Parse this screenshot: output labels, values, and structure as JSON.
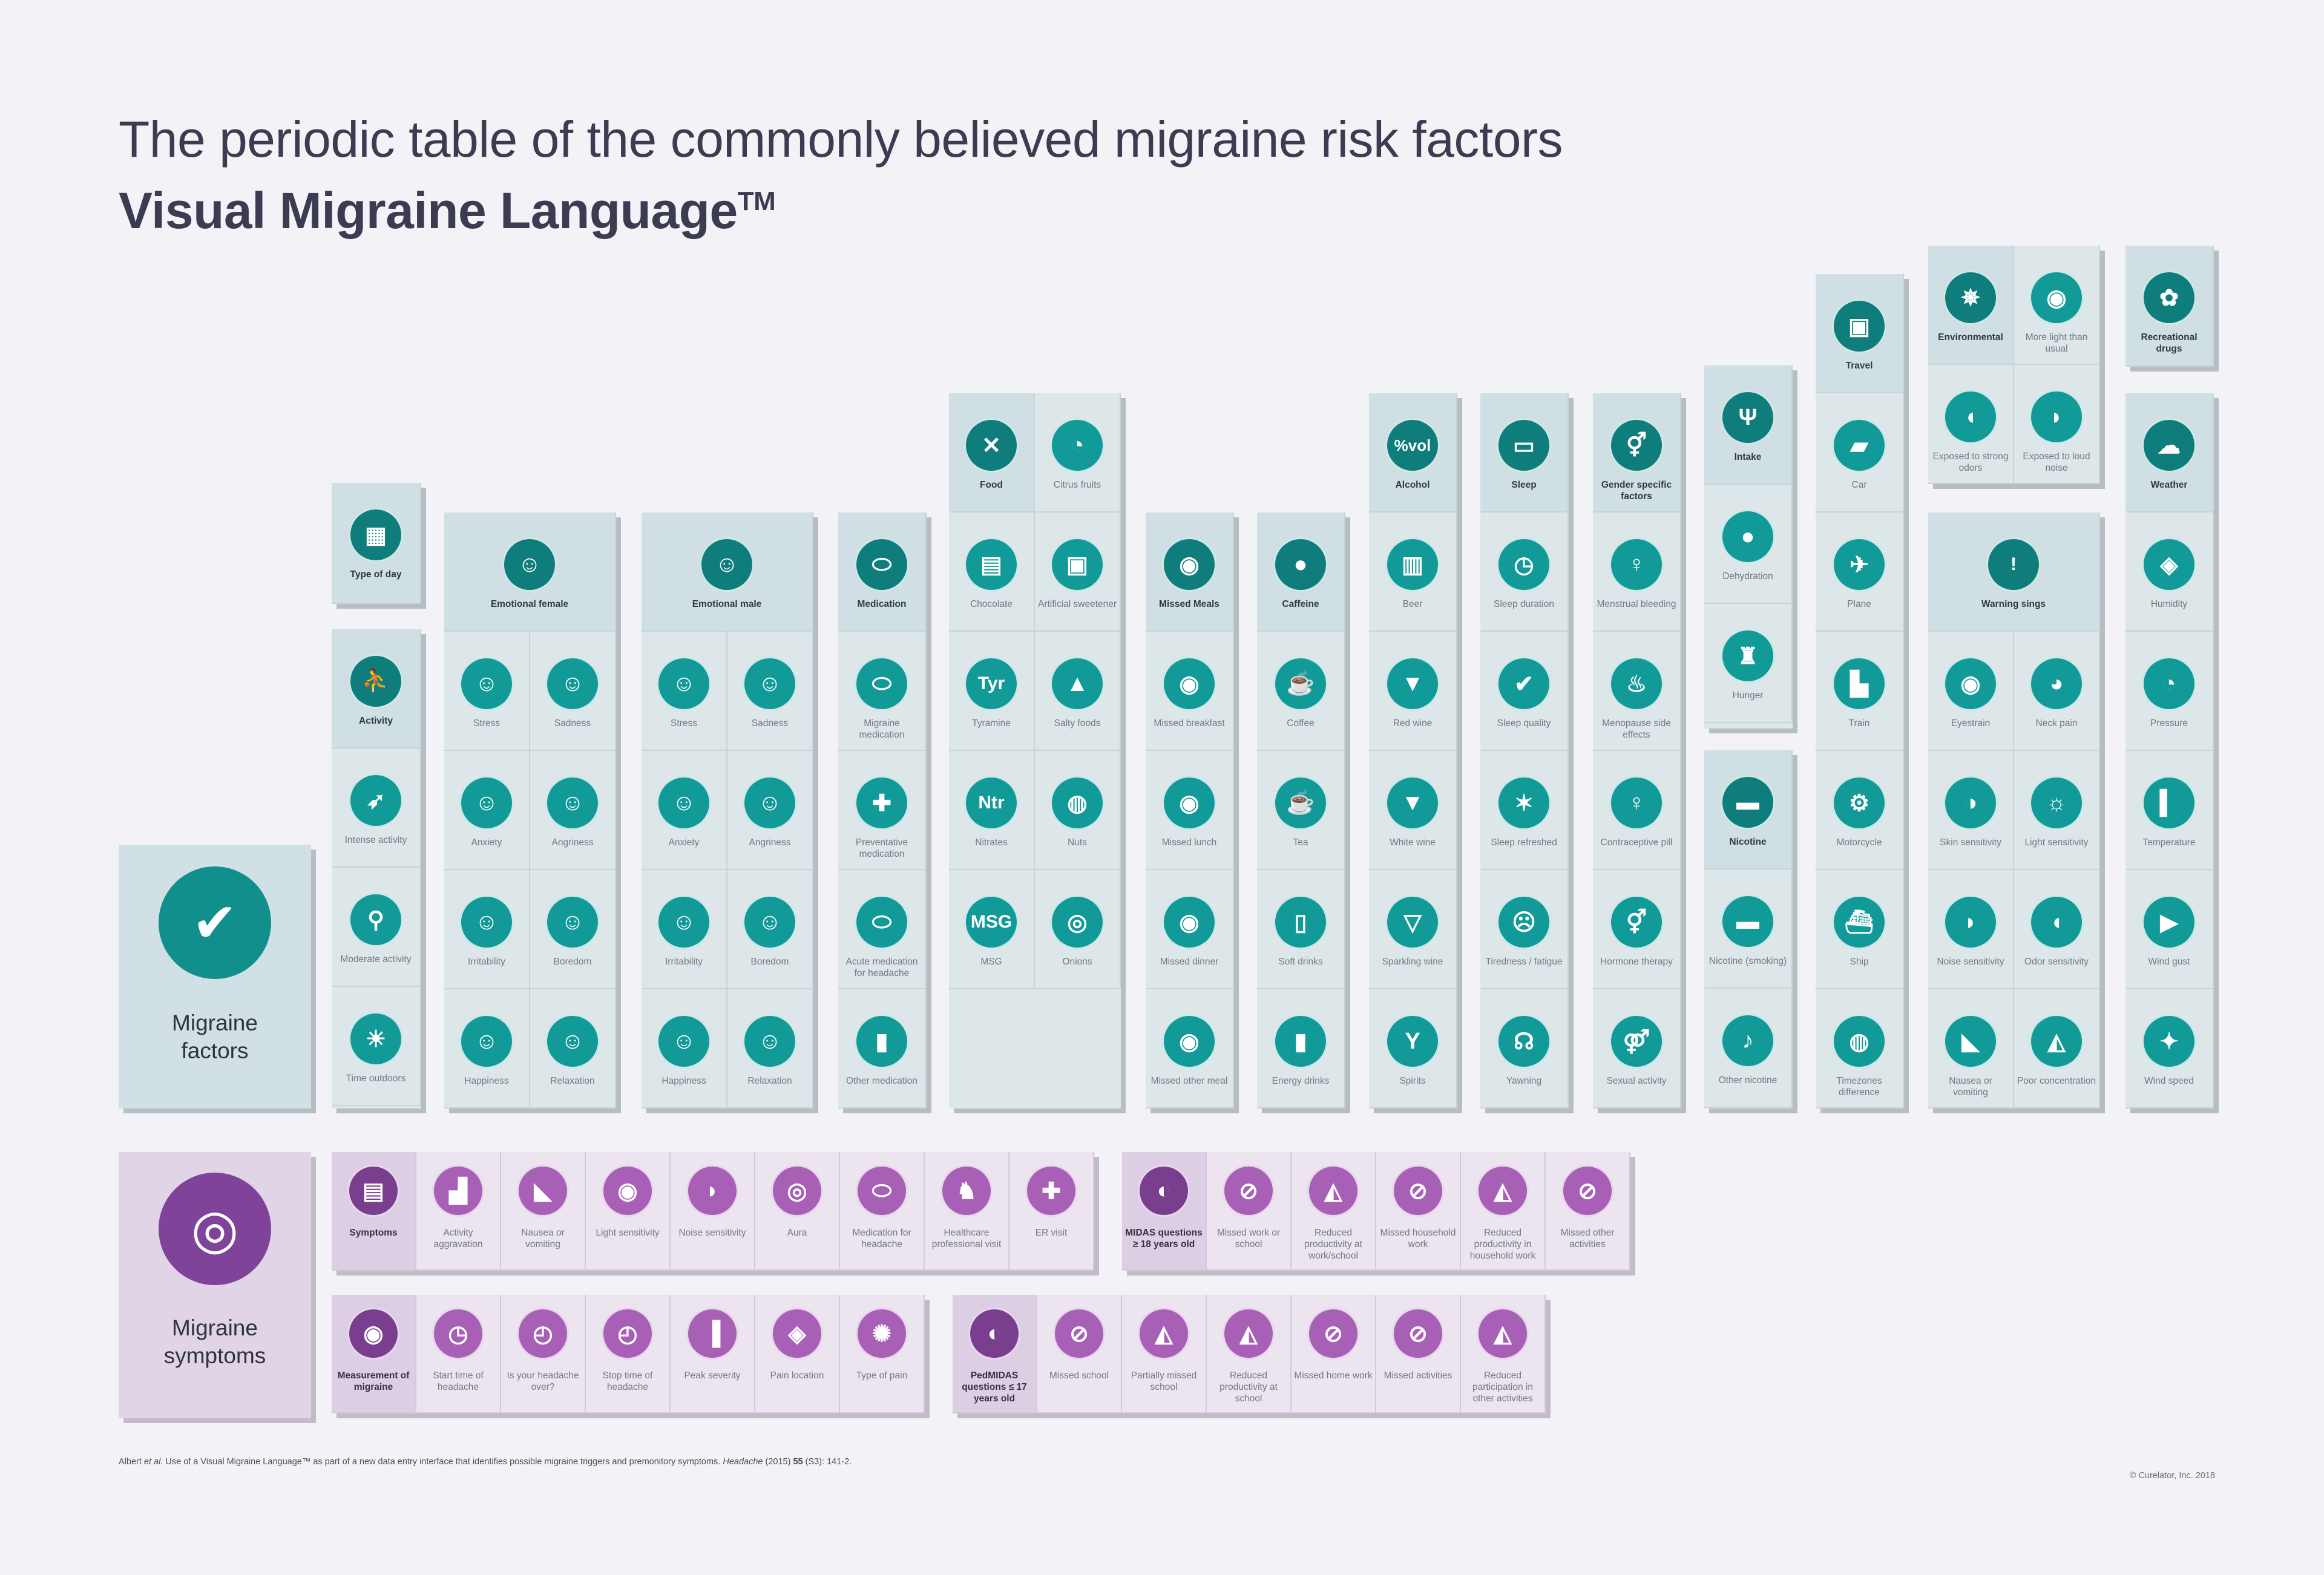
{
  "title_line1": "The periodic table of the commonly believed migraine risk factors",
  "title_line2": "Visual Migraine Language",
  "trademark": "TM",
  "colors": {
    "factor_icon": "#119a98",
    "factor_head_icon": "#0e7d7b",
    "symptom_icon": "#a760b5",
    "symptom_head_icon": "#7a3e8e"
  },
  "factors_panel": {
    "label": "Migraine factors",
    "icon": "head-check-icon"
  },
  "symptoms_panel": {
    "label": "Migraine symptoms",
    "icon": "head-spiral-icon"
  },
  "factor_columns": [
    {
      "head": {
        "label": "Type of day",
        "icon": "calendar-icon"
      },
      "items": []
    },
    {
      "head": {
        "label": "Activity",
        "icon": "activity-icon"
      },
      "items": [
        {
          "label": "Intense activity",
          "icon": "running-icon"
        },
        {
          "label": "Moderate activity",
          "icon": "walking-icon"
        },
        {
          "label": "Time outdoors",
          "icon": "outdoor-icon"
        }
      ]
    },
    {
      "head": {
        "label": "Emotional female",
        "icon": "female-face-icon"
      },
      "items": [
        {
          "label": "Stress",
          "icon": "face-icon"
        },
        {
          "label": "Sadness",
          "icon": "face-icon"
        },
        {
          "label": "Anxiety",
          "icon": "face-icon"
        },
        {
          "label": "Angriness",
          "icon": "face-icon"
        },
        {
          "label": "Irritability",
          "icon": "face-icon"
        },
        {
          "label": "Boredom",
          "icon": "face-icon"
        },
        {
          "label": "Happiness",
          "icon": "face-icon"
        },
        {
          "label": "Relaxation",
          "icon": "face-icon"
        }
      ]
    },
    {
      "head": {
        "label": "Emotional male",
        "icon": "male-face-icon"
      },
      "items": [
        {
          "label": "Stress",
          "icon": "face-icon"
        },
        {
          "label": "Sadness",
          "icon": "face-icon"
        },
        {
          "label": "Anxiety",
          "icon": "face-icon"
        },
        {
          "label": "Angriness",
          "icon": "face-icon"
        },
        {
          "label": "Irritability",
          "icon": "face-icon"
        },
        {
          "label": "Boredom",
          "icon": "face-icon"
        },
        {
          "label": "Happiness",
          "icon": "face-icon"
        },
        {
          "label": "Relaxation",
          "icon": "face-icon"
        }
      ]
    },
    {
      "head": {
        "label": "Medication",
        "icon": "pill-icon"
      },
      "items": [
        {
          "label": "Migraine medication",
          "icon": "pill-icon"
        },
        {
          "label": "Preventative medication",
          "icon": "pill-plus-icon"
        },
        {
          "label": "Acute medication for headache",
          "icon": "pill-icon"
        },
        {
          "label": "Other medication",
          "icon": "bottle-icon"
        }
      ]
    },
    {
      "head": {
        "label": "Food",
        "icon": "fork-knife-icon"
      },
      "items": [
        {
          "label": "Citrus fruits",
          "icon": "citrus-icon"
        },
        {
          "label": "Chocolate",
          "icon": "chocolate-icon"
        },
        {
          "label": "Artificial sweetener",
          "icon": "sweetener-icon"
        },
        {
          "label": "Tyramine",
          "icon": "tyr-icon",
          "text": "Tyr"
        },
        {
          "label": "Salty foods",
          "icon": "salt-icon"
        },
        {
          "label": "Nitrates",
          "icon": "ntr-icon",
          "text": "Ntr"
        },
        {
          "label": "Nuts",
          "icon": "nut-icon"
        },
        {
          "label": "MSG",
          "icon": "msg-icon",
          "text": "MSG"
        },
        {
          "label": "Onions",
          "icon": "onion-icon"
        }
      ]
    },
    {
      "head": {
        "label": "Missed Meals",
        "icon": "plate-icon"
      },
      "items": [
        {
          "label": "Missed breakfast",
          "icon": "plate-icon"
        },
        {
          "label": "Missed lunch",
          "icon": "plate-icon"
        },
        {
          "label": "Missed dinner",
          "icon": "plate-icon"
        },
        {
          "label": "Missed other meal",
          "icon": "plate-icon"
        }
      ]
    },
    {
      "head": {
        "label": "Caffeine",
        "icon": "coffee-bean-icon"
      },
      "items": [
        {
          "label": "Coffee",
          "icon": "cup-icon"
        },
        {
          "label": "Tea",
          "icon": "tea-icon"
        },
        {
          "label": "Soft drinks",
          "icon": "soda-icon"
        },
        {
          "label": "Energy drinks",
          "icon": "can-icon"
        }
      ]
    },
    {
      "head": {
        "label": "Alcohol",
        "icon": "vol-icon",
        "text": "%vol"
      },
      "items": [
        {
          "label": "Beer",
          "icon": "beer-icon"
        },
        {
          "label": "Red wine",
          "icon": "wine-icon"
        },
        {
          "label": "White wine",
          "icon": "wine-icon"
        },
        {
          "label": "Sparkling wine",
          "icon": "flute-icon"
        },
        {
          "label": "Spirits",
          "icon": "cocktail-icon"
        }
      ]
    },
    {
      "head": {
        "label": "Sleep",
        "icon": "bed-icon"
      },
      "items": [
        {
          "label": "Sleep duration",
          "icon": "bed-clock-icon"
        },
        {
          "label": "Sleep quality",
          "icon": "bed-check-icon"
        },
        {
          "label": "Sleep refreshed",
          "icon": "stretch-icon"
        },
        {
          "label": "Tiredness / fatigue",
          "icon": "tired-icon"
        },
        {
          "label": "Yawning",
          "icon": "yawn-icon"
        }
      ]
    },
    {
      "head": {
        "label": "Gender specific factors",
        "icon": "gender-icon"
      },
      "items": [
        {
          "label": "Menstrual bleeding",
          "icon": "female-symbol-icon"
        },
        {
          "label": "Menopause side effects",
          "icon": "flame-icon"
        },
        {
          "label": "Contraceptive pill",
          "icon": "female-symbol-icon"
        },
        {
          "label": "Hormone therapy",
          "icon": "gender-icon"
        },
        {
          "label": "Sexual activity",
          "icon": "couple-icon"
        }
      ]
    },
    {
      "head": {
        "label": "Intake",
        "icon": "cutlery-icon"
      },
      "items": [
        {
          "label": "Dehydration",
          "icon": "drop-icon"
        },
        {
          "label": "Hunger",
          "icon": "hunger-icon"
        }
      ]
    },
    {
      "head": {
        "label": "Nicotine",
        "icon": "cigarette-icon"
      },
      "items": [
        {
          "label": "Nicotine (smoking)",
          "icon": "cigarette-icon"
        },
        {
          "label": "Other nicotine",
          "icon": "pipe-icon"
        }
      ]
    },
    {
      "head": {
        "label": "Travel",
        "icon": "suitcase-icon"
      },
      "items": [
        {
          "label": "Car",
          "icon": "car-icon"
        },
        {
          "label": "Plane",
          "icon": "plane-icon"
        },
        {
          "label": "Train",
          "icon": "train-icon"
        },
        {
          "label": "Motorcycle",
          "icon": "motorcycle-icon"
        },
        {
          "label": "Ship",
          "icon": "ship-icon"
        },
        {
          "label": "Timezones difference",
          "icon": "globe-icon"
        }
      ]
    },
    {
      "head": {
        "label": "Environmental",
        "icon": "environment-icon"
      },
      "items": [
        {
          "label": "More light than usual",
          "icon": "eye-light-icon"
        },
        {
          "label": "Exposed to strong odors",
          "icon": "nose-icon"
        },
        {
          "label": "Exposed to loud noise",
          "icon": "ear-icon"
        }
      ]
    },
    {
      "head": {
        "label": "Warning sings",
        "icon": "exclamation-icon",
        "text": "!"
      },
      "items": [
        {
          "label": "Eyestrain",
          "icon": "eye-icon"
        },
        {
          "label": "Neck pain",
          "icon": "neck-icon"
        },
        {
          "label": "Skin sensitivity",
          "icon": "skin-icon"
        },
        {
          "label": "Light sensitivity",
          "icon": "light-icon"
        },
        {
          "label": "Noise sensitivity",
          "icon": "ear-icon"
        },
        {
          "label": "Odor sensitivity",
          "icon": "nose-icon"
        },
        {
          "label": "Nausea or vomiting",
          "icon": "nausea-icon"
        },
        {
          "label": "Poor concentration",
          "icon": "concentration-icon"
        }
      ]
    },
    {
      "head": {
        "label": "Recreational drugs",
        "icon": "leaf-icon"
      },
      "items": []
    },
    {
      "head": {
        "label": "Weather",
        "icon": "cloud-sun-icon"
      },
      "items": [
        {
          "label": "Humidity",
          "icon": "humidity-icon"
        },
        {
          "label": "Pressure",
          "icon": "gauge-icon"
        },
        {
          "label": "Temperature",
          "icon": "thermometer-icon"
        },
        {
          "label": "Wind gust",
          "icon": "windsock-icon"
        },
        {
          "label": "Wind speed",
          "icon": "compass-icon"
        }
      ]
    }
  ],
  "symptom_rows": [
    {
      "head": {
        "label": "Symptoms",
        "icon": "clipboard-icon"
      },
      "items": [
        {
          "label": "Activity aggravation",
          "icon": "stairs-icon"
        },
        {
          "label": "Nausea or vomiting",
          "icon": "nausea-icon"
        },
        {
          "label": "Light sensitivity",
          "icon": "eye-light-icon"
        },
        {
          "label": "Noise sensitivity",
          "icon": "ear-icon"
        },
        {
          "label": "Aura",
          "icon": "aura-icon"
        },
        {
          "label": "Medication for headache",
          "icon": "pill-icon"
        },
        {
          "label": "Healthcare professional visit",
          "icon": "doctor-icon"
        },
        {
          "label": "ER visit",
          "icon": "hospital-icon"
        }
      ]
    },
    {
      "head": {
        "label": "MIDAS questions ≥ 18 years old",
        "icon": "midas-icon"
      },
      "items": [
        {
          "label": "Missed work or school",
          "icon": "no-work-icon"
        },
        {
          "label": "Reduced productivity at work/school",
          "icon": "reduced-work-icon"
        },
        {
          "label": "Missed household work",
          "icon": "no-household-icon"
        },
        {
          "label": "Reduced productivity in household work",
          "icon": "reduced-household-icon"
        },
        {
          "label": "Missed other activities",
          "icon": "no-activity-icon"
        }
      ]
    },
    {
      "head": {
        "label": "Measurement of migraine",
        "icon": "measure-head-icon"
      },
      "items": [
        {
          "label": "Start time of headache",
          "icon": "head-clock-icon"
        },
        {
          "label": "Is your headache over?",
          "icon": "stopwatch-icon"
        },
        {
          "label": "Stop time of headache",
          "icon": "stopwatch-icon"
        },
        {
          "label": "Peak severity",
          "icon": "bars-icon"
        },
        {
          "label": "Pain location",
          "icon": "location-icon"
        },
        {
          "label": "Type of pain",
          "icon": "head-pain-icon"
        }
      ]
    },
    {
      "head": {
        "label": "PedMIDAS questions ≤ 17 years old",
        "icon": "pedmidas-icon"
      },
      "items": [
        {
          "label": "Missed school",
          "icon": "no-school-icon"
        },
        {
          "label": "Partially missed school",
          "icon": "partial-school-icon"
        },
        {
          "label": "Reduced productivity at school",
          "icon": "reduced-school-icon"
        },
        {
          "label": "Missed home work",
          "icon": "no-homework-icon"
        },
        {
          "label": "Missed activities",
          "icon": "no-activity-icon"
        },
        {
          "label": "Reduced participation in other activities",
          "icon": "reduced-activity-icon"
        }
      ]
    }
  ],
  "footnote_authors": "Albert ",
  "footnote_etal": "et al.",
  "footnote_text": " Use of a Visual Migraine Language™ as part of a new data entry interface that identifies possible migraine triggers and premonitory symptoms. ",
  "footnote_journal": "Headache",
  "footnote_year": " (2015) ",
  "footnote_volume": "55",
  "footnote_pages": " (S3): 141-2.",
  "copyright": "© Curelator, Inc. 2018"
}
